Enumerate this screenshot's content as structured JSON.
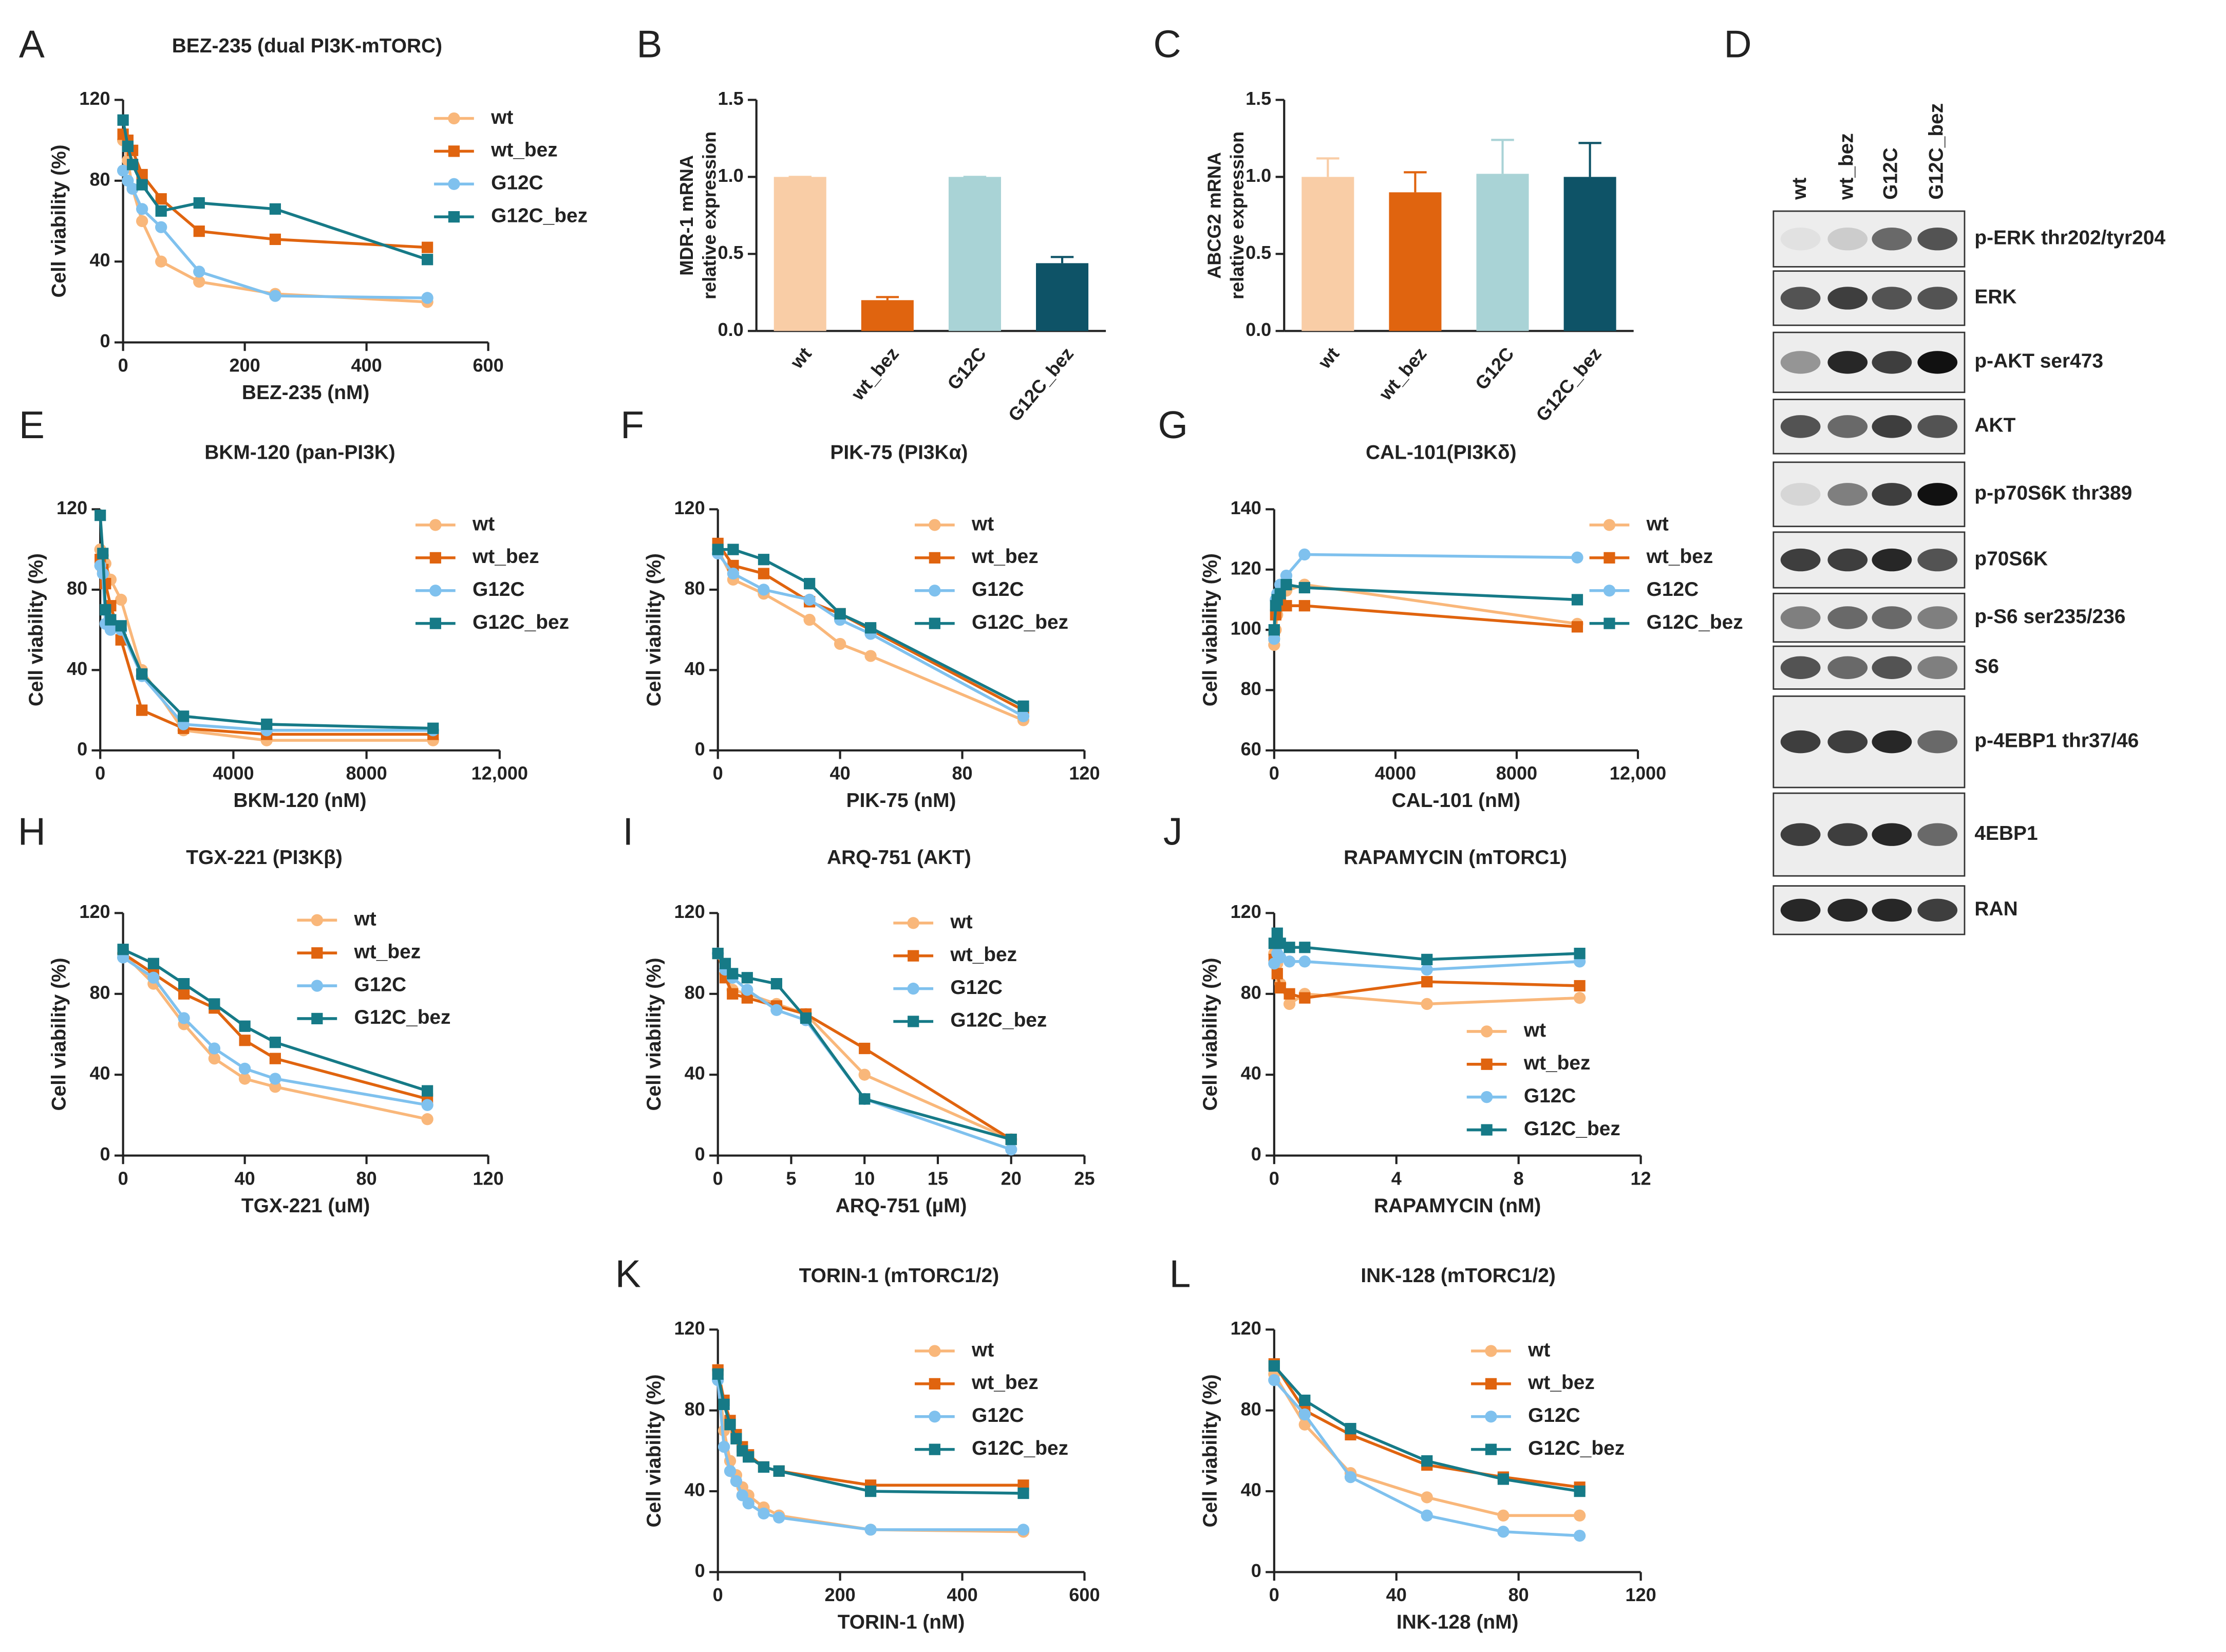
{
  "chart_data": [
    {
      "type": "line",
      "panel": "A",
      "title": "BEZ-235  (dual PI3K-mTORC)",
      "x_label": "BEZ-235 (nM)",
      "y_label": "Cell viability (%)",
      "xlim": [
        0,
        600
      ],
      "xticks": [
        0,
        200,
        400,
        600
      ],
      "ylim": [
        0,
        120
      ],
      "yticks": [
        0,
        40,
        80,
        120
      ],
      "legend": "upper right",
      "x": [
        0,
        7.8,
        15.6,
        31.25,
        62.5,
        125,
        250,
        500
      ],
      "series": [
        {
          "name": "wt",
          "color": "#f9b77a",
          "marker": "circle",
          "values": [
            100,
            90,
            76,
            60,
            40,
            30,
            24,
            20
          ]
        },
        {
          "name": "wt_bez",
          "color": "#e0640f",
          "marker": "square",
          "values": [
            103,
            100,
            95,
            83,
            71,
            55,
            51,
            47
          ]
        },
        {
          "name": "G12C",
          "color": "#7fc1ee",
          "marker": "circle",
          "values": [
            85,
            80,
            76,
            66,
            57,
            35,
            23,
            22
          ]
        },
        {
          "name": "G12C_bez",
          "color": "#167a87",
          "marker": "square",
          "values": [
            110,
            97,
            88,
            78,
            65,
            69,
            66,
            41
          ]
        }
      ]
    },
    {
      "type": "bar",
      "panel": "B",
      "y_label": [
        "MDR-1 mRNA",
        "relative expression"
      ],
      "ylim": [
        0,
        1.5
      ],
      "yticks": [
        {
          "value": 0,
          "label": "0.0"
        },
        {
          "value": 0.5,
          "label": "0.5"
        },
        {
          "value": 1,
          "label": "1.0"
        },
        {
          "value": 1.5,
          "label": "1.5"
        }
      ],
      "categories": [
        "wt",
        "wt_bez",
        "G12C",
        "G12C_bez"
      ],
      "values": [
        1,
        0.2,
        1,
        0.44
      ],
      "errors": [
        0,
        0.02,
        0,
        0.04
      ],
      "colors": [
        "#f9cda6",
        "#e0640f",
        "#a9d3d6",
        "#0e5367"
      ]
    },
    {
      "type": "bar",
      "panel": "C",
      "y_label": [
        "ABCG2 mRNA",
        "relative expression"
      ],
      "ylim": [
        0,
        1.5
      ],
      "yticks": [
        {
          "value": 0,
          "label": "0.0"
        },
        {
          "value": 0.5,
          "label": "0.5"
        },
        {
          "value": 1,
          "label": "1.0"
        },
        {
          "value": 1.5,
          "label": "1.5"
        }
      ],
      "categories": [
        "wt",
        "wt_bez",
        "G12C",
        "G12C_bez"
      ],
      "values": [
        1,
        0.9,
        1.02,
        1.0
      ],
      "errors": [
        0.12,
        0.13,
        0.22,
        0.22
      ],
      "colors": [
        "#f9cda6",
        "#e0640f",
        "#a9d3d6",
        "#0e5367"
      ]
    },
    {
      "type": "line",
      "panel": "E",
      "title": "BKM-120 (pan-PI3K)",
      "x_label": "BKM-120 (nM)",
      "y_label": "Cell viability (%)",
      "xlim": [
        0,
        12000
      ],
      "xticks": [
        0,
        4000,
        8000,
        {
          "value": 12000,
          "label": "12,000"
        }
      ],
      "ylim": [
        0,
        120
      ],
      "yticks": [
        0,
        40,
        80,
        120
      ],
      "legend": "upper right",
      "x": [
        0,
        78,
        156,
        312,
        625,
        1250,
        2500,
        5000,
        10000
      ],
      "series": [
        {
          "name": "wt",
          "color": "#f9b77a",
          "marker": "circle",
          "values": [
            100,
            97,
            93,
            85,
            75,
            40,
            10,
            5,
            5
          ]
        },
        {
          "name": "wt_bez",
          "color": "#e0640f",
          "marker": "square",
          "values": [
            95,
            90,
            83,
            72,
            55,
            20,
            11,
            8,
            8
          ]
        },
        {
          "name": "G12C",
          "color": "#7fc1ee",
          "marker": "circle",
          "values": [
            92,
            88,
            63,
            60,
            60,
            37,
            13,
            10,
            10
          ]
        },
        {
          "name": "G12C_bez",
          "color": "#167a87",
          "marker": "square",
          "values": [
            117,
            98,
            70,
            65,
            62,
            38,
            17,
            13,
            11
          ]
        }
      ]
    },
    {
      "type": "line",
      "panel": "F",
      "title": "PIK-75 (PI3Kα)",
      "x_label": "PIK-75 (nM)",
      "y_label": "Cell viability (%)",
      "xlim": [
        0,
        120
      ],
      "xticks": [
        0,
        40,
        80,
        120
      ],
      "ylim": [
        0,
        120
      ],
      "yticks": [
        0,
        40,
        80,
        120
      ],
      "legend": "upper right",
      "x": [
        0,
        5,
        15,
        30,
        40,
        50,
        100
      ],
      "series": [
        {
          "name": "wt",
          "color": "#f9b77a",
          "marker": "circle",
          "values": [
            100,
            85,
            78,
            65,
            53,
            47,
            15
          ]
        },
        {
          "name": "wt_bez",
          "color": "#e0640f",
          "marker": "square",
          "values": [
            103,
            92,
            88,
            74,
            68,
            60,
            20
          ]
        },
        {
          "name": "G12C",
          "color": "#7fc1ee",
          "marker": "circle",
          "values": [
            98,
            88,
            80,
            75,
            65,
            58,
            17
          ]
        },
        {
          "name": "G12C_bez",
          "color": "#167a87",
          "marker": "square",
          "values": [
            100,
            100,
            95,
            83,
            68,
            61,
            22
          ]
        }
      ]
    },
    {
      "type": "line",
      "panel": "G",
      "title": "CAL-101(PI3Kδ)",
      "x_label": "CAL-101 (nM)",
      "y_label": "Cell viability (%)",
      "xlim": [
        0,
        12000
      ],
      "xticks": [
        0,
        4000,
        8000,
        {
          "value": 12000,
          "label": "12,000"
        }
      ],
      "ylim": [
        60,
        140
      ],
      "yticks": [
        60,
        80,
        100,
        120,
        140
      ],
      "legend": "upper right",
      "x": [
        0,
        50,
        100,
        200,
        400,
        1000,
        10000
      ],
      "series": [
        {
          "name": "wt",
          "color": "#f9b77a",
          "marker": "circle",
          "values": [
            95,
            100,
            105,
            110,
            113,
            115,
            102
          ]
        },
        {
          "name": "wt_bez",
          "color": "#e0640f",
          "marker": "square",
          "values": [
            98,
            105,
            108,
            110,
            108,
            108,
            101
          ]
        },
        {
          "name": "G12C",
          "color": "#7fc1ee",
          "marker": "circle",
          "values": [
            97,
            110,
            112,
            115,
            118,
            125,
            124
          ]
        },
        {
          "name": "G12C_bez",
          "color": "#167a87",
          "marker": "square",
          "values": [
            100,
            108,
            110,
            112,
            115,
            114,
            110
          ]
        }
      ]
    },
    {
      "type": "line",
      "panel": "H",
      "title": "TGX-221 (PI3Kβ)",
      "x_label": "TGX-221 (uM)",
      "y_label": "Cell viability (%)",
      "xlim": [
        0,
        120
      ],
      "xticks": [
        0,
        40,
        80,
        120
      ],
      "ylim": [
        0,
        120
      ],
      "yticks": [
        0,
        40,
        80,
        120
      ],
      "legend": "upper right",
      "x": [
        0,
        10,
        20,
        30,
        40,
        50,
        100
      ],
      "series": [
        {
          "name": "wt",
          "color": "#f9b77a",
          "marker": "circle",
          "values": [
            100,
            85,
            65,
            48,
            38,
            34,
            18
          ]
        },
        {
          "name": "wt_bez",
          "color": "#e0640f",
          "marker": "square",
          "values": [
            100,
            90,
            80,
            73,
            57,
            48,
            28
          ]
        },
        {
          "name": "G12C",
          "color": "#7fc1ee",
          "marker": "circle",
          "values": [
            98,
            88,
            68,
            53,
            43,
            38,
            25
          ]
        },
        {
          "name": "G12C_bez",
          "color": "#167a87",
          "marker": "square",
          "values": [
            102,
            95,
            85,
            75,
            64,
            56,
            32
          ]
        }
      ]
    },
    {
      "type": "line",
      "panel": "I",
      "title": "ARQ-751 (AKT)",
      "x_label": "ARQ-751 (µM)",
      "y_label": "Cell viability (%)",
      "xlim": [
        0,
        25
      ],
      "xticks": [
        0,
        5,
        10,
        15,
        20,
        25
      ],
      "ylim": [
        0,
        120
      ],
      "yticks": [
        0,
        40,
        80,
        120
      ],
      "legend": "upper right",
      "x": [
        0,
        0.5,
        1,
        2,
        4,
        6,
        10,
        20
      ],
      "series": [
        {
          "name": "wt",
          "color": "#f9b77a",
          "marker": "circle",
          "values": [
            100,
            90,
            82,
            80,
            75,
            70,
            40,
            8
          ]
        },
        {
          "name": "wt_bez",
          "color": "#e0640f",
          "marker": "square",
          "values": [
            100,
            88,
            80,
            78,
            74,
            70,
            53,
            8
          ]
        },
        {
          "name": "G12C",
          "color": "#7fc1ee",
          "marker": "circle",
          "values": [
            100,
            92,
            88,
            82,
            72,
            67,
            28,
            3
          ]
        },
        {
          "name": "G12C_bez",
          "color": "#167a87",
          "marker": "square",
          "values": [
            100,
            95,
            90,
            88,
            85,
            68,
            28,
            8
          ]
        }
      ]
    },
    {
      "type": "line",
      "panel": "J",
      "title": "RAPAMYCIN (mTORC1)",
      "x_label": "RAPAMYCIN (nM)",
      "y_label": "Cell viability (%)",
      "xlim": [
        0,
        12
      ],
      "xticks": [
        0,
        4,
        8,
        12
      ],
      "ylim": [
        0,
        120
      ],
      "yticks": [
        0,
        40,
        80,
        120
      ],
      "legend": "lower right",
      "x": [
        0,
        0.1,
        0.2,
        0.5,
        1,
        5,
        10
      ],
      "series": [
        {
          "name": "wt",
          "color": "#f9b77a",
          "marker": "circle",
          "values": [
            100,
            95,
            85,
            75,
            80,
            75,
            78
          ]
        },
        {
          "name": "wt_bez",
          "color": "#e0640f",
          "marker": "square",
          "values": [
            97,
            90,
            83,
            80,
            78,
            86,
            84
          ]
        },
        {
          "name": "G12C",
          "color": "#7fc1ee",
          "marker": "circle",
          "values": [
            95,
            100,
            98,
            96,
            96,
            92,
            96
          ]
        },
        {
          "name": "G12C_bez",
          "color": "#167a87",
          "marker": "square",
          "values": [
            105,
            110,
            105,
            103,
            103,
            97,
            100
          ]
        }
      ]
    },
    {
      "type": "line",
      "panel": "K",
      "title": "TORIN-1 (mTORC1/2)",
      "x_label": "TORIN-1 (nM)",
      "y_label": "Cell viability (%)",
      "xlim": [
        0,
        600
      ],
      "xticks": [
        0,
        200,
        400,
        600
      ],
      "ylim": [
        0,
        120
      ],
      "yticks": [
        0,
        40,
        80,
        120
      ],
      "legend": "upper right",
      "x": [
        0,
        10,
        20,
        30,
        40,
        50,
        75,
        100,
        250,
        500
      ],
      "series": [
        {
          "name": "wt",
          "color": "#f9b77a",
          "marker": "circle",
          "values": [
            100,
            70,
            55,
            48,
            42,
            38,
            32,
            28,
            21,
            20
          ]
        },
        {
          "name": "wt_bez",
          "color": "#e0640f",
          "marker": "square",
          "values": [
            100,
            85,
            75,
            68,
            62,
            58,
            52,
            50,
            43,
            43
          ]
        },
        {
          "name": "G12C",
          "color": "#7fc1ee",
          "marker": "circle",
          "values": [
            95,
            62,
            50,
            45,
            38,
            34,
            29,
            27,
            21,
            21
          ]
        },
        {
          "name": "G12C_bez",
          "color": "#167a87",
          "marker": "square",
          "values": [
            98,
            83,
            73,
            66,
            60,
            57,
            52,
            50,
            40,
            39
          ]
        }
      ]
    },
    {
      "type": "line",
      "panel": "L",
      "title": "INK-128 (mTORC1/2)",
      "x_label": "INK-128 (nM)",
      "y_label": "Cell viability (%)",
      "xlim": [
        0,
        120
      ],
      "xticks": [
        0,
        40,
        80,
        120
      ],
      "ylim": [
        0,
        120
      ],
      "yticks": [
        0,
        40,
        80,
        120
      ],
      "legend": "upper right",
      "x": [
        0,
        10,
        25,
        50,
        75,
        100
      ],
      "series": [
        {
          "name": "wt",
          "color": "#f9b77a",
          "marker": "circle",
          "values": [
            98,
            73,
            49,
            37,
            28,
            28
          ]
        },
        {
          "name": "wt_bez",
          "color": "#e0640f",
          "marker": "square",
          "values": [
            103,
            80,
            68,
            53,
            47,
            42
          ]
        },
        {
          "name": "G12C",
          "color": "#7fc1ee",
          "marker": "circle",
          "values": [
            95,
            78,
            47,
            28,
            20,
            18
          ]
        },
        {
          "name": "G12C_bez",
          "color": "#167a87",
          "marker": "square",
          "values": [
            102,
            85,
            71,
            55,
            46,
            40
          ]
        }
      ]
    }
  ],
  "blot": {
    "panel": "D",
    "lanes": [
      "wt",
      "wt_bez",
      "G12C",
      "G12C_bez"
    ],
    "rows": [
      "p-ERK thr202/tyr204",
      "ERK",
      "p-AKT ser473",
      "AKT",
      "p-p70S6K thr389",
      "p70S6K",
      "p-S6 ser235/236",
      "S6",
      "p-4EBP1 thr37/46",
      "4EBP1",
      "RAN"
    ]
  }
}
